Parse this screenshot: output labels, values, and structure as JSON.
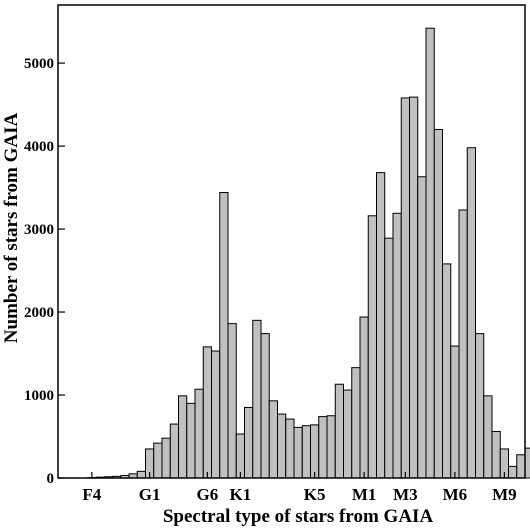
{
  "chart_data": {
    "type": "bar",
    "title": "",
    "xlabel": "Spectral type of stars from GAIA",
    "ylabel": "Number of stars from GAIA",
    "ylim": [
      0,
      5700
    ],
    "yticks": [
      0,
      1000,
      2000,
      3000,
      4000,
      5000
    ],
    "xtick_labels": [
      {
        "label": "F4",
        "bin": 3
      },
      {
        "label": "G1",
        "bin": 10
      },
      {
        "label": "G6",
        "bin": 17
      },
      {
        "label": "K1",
        "bin": 21
      },
      {
        "label": "K5",
        "bin": 30
      },
      {
        "label": "M1",
        "bin": 36
      },
      {
        "label": "M3",
        "bin": 41
      },
      {
        "label": "M6",
        "bin": 47
      },
      {
        "label": "M9",
        "bin": 53
      }
    ],
    "grid": false,
    "bar_color": "#c0c0c0",
    "values": [
      0,
      0,
      0,
      5,
      10,
      15,
      20,
      30,
      50,
      80,
      350,
      420,
      480,
      650,
      990,
      900,
      1070,
      1580,
      1530,
      3440,
      1860,
      530,
      850,
      1900,
      1740,
      930,
      770,
      710,
      610,
      630,
      640,
      740,
      750,
      1130,
      1060,
      1330,
      1940,
      3160,
      3680,
      2890,
      3190,
      4580,
      4590,
      3630,
      5420,
      4200,
      2580,
      1590,
      3230,
      3980,
      1740,
      990,
      560,
      350,
      140,
      280,
      360
    ]
  }
}
